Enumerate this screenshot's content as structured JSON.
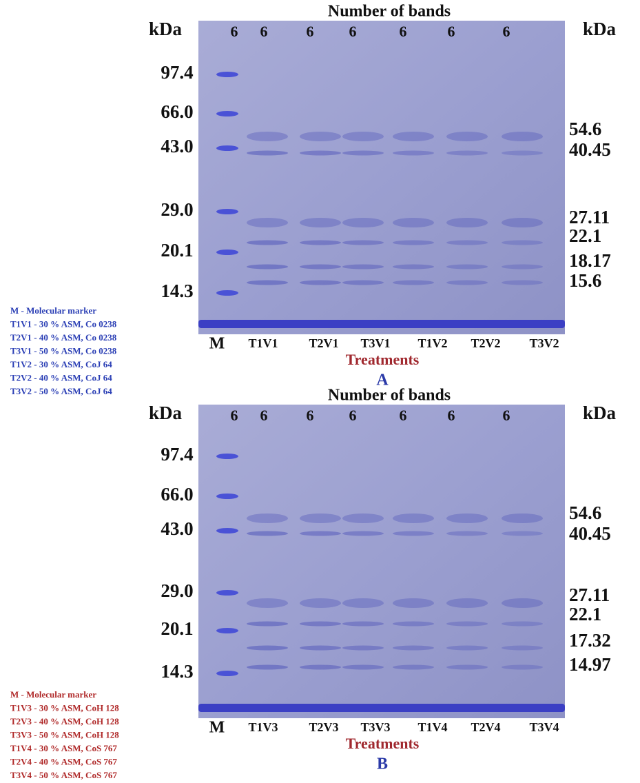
{
  "panels": [
    {
      "header": "Number of bands",
      "kda_left": "kDa",
      "kda_right": "kDa",
      "band_counts": [
        6,
        6,
        6,
        6,
        6,
        6,
        6
      ],
      "marker_sizes": [
        "97.4",
        "66.0",
        "43.0",
        "29.0",
        "20.1",
        "14.3"
      ],
      "band_sizes": [
        "54.6",
        "40.45",
        "27.11",
        "22.1",
        "18.17",
        "15.6"
      ],
      "lanes": [
        "M",
        "T1V1",
        "T2V1",
        "T3V1",
        "T1V2",
        "T2V2",
        "T3V2"
      ],
      "x_label": "Treatments",
      "panel_label": "A",
      "legend": [
        "M - Molecular marker",
        "T1V1 - 30 % ASM, Co 0238",
        "T2V1 - 40 % ASM, Co 0238",
        "T3V1 - 50 % ASM, Co 0238",
        "T1V2 - 30 % ASM, CoJ 64",
        "T2V2 - 40 % ASM, CoJ 64",
        "T3V2 - 50 % ASM, CoJ 64"
      ]
    },
    {
      "header": "Number of bands",
      "kda_left": "kDa",
      "kda_right": "kDa",
      "band_counts": [
        6,
        6,
        6,
        6,
        6,
        6,
        6
      ],
      "marker_sizes": [
        "97.4",
        "66.0",
        "43.0",
        "29.0",
        "20.1",
        "14.3"
      ],
      "band_sizes": [
        "54.6",
        "40.45",
        "27.11",
        "22.1",
        "17.32",
        "14.97"
      ],
      "lanes": [
        "M",
        "T1V3",
        "T2V3",
        "T3V3",
        "T1V4",
        "T2V4",
        "T3V4"
      ],
      "x_label": "Treatments",
      "panel_label": "B",
      "legend": [
        "M - Molecular marker",
        "T1V3 - 30 % ASM, CoH 128",
        "T2V3 - 40 % ASM, CoH 128",
        "T3V3 - 50 % ASM, CoH 128",
        "T1V4 - 30 % ASM, CoS 767",
        "T2V4 - 40 % ASM, CoS 767",
        "T3V4 - 50 % ASM, CoS 767"
      ]
    }
  ]
}
